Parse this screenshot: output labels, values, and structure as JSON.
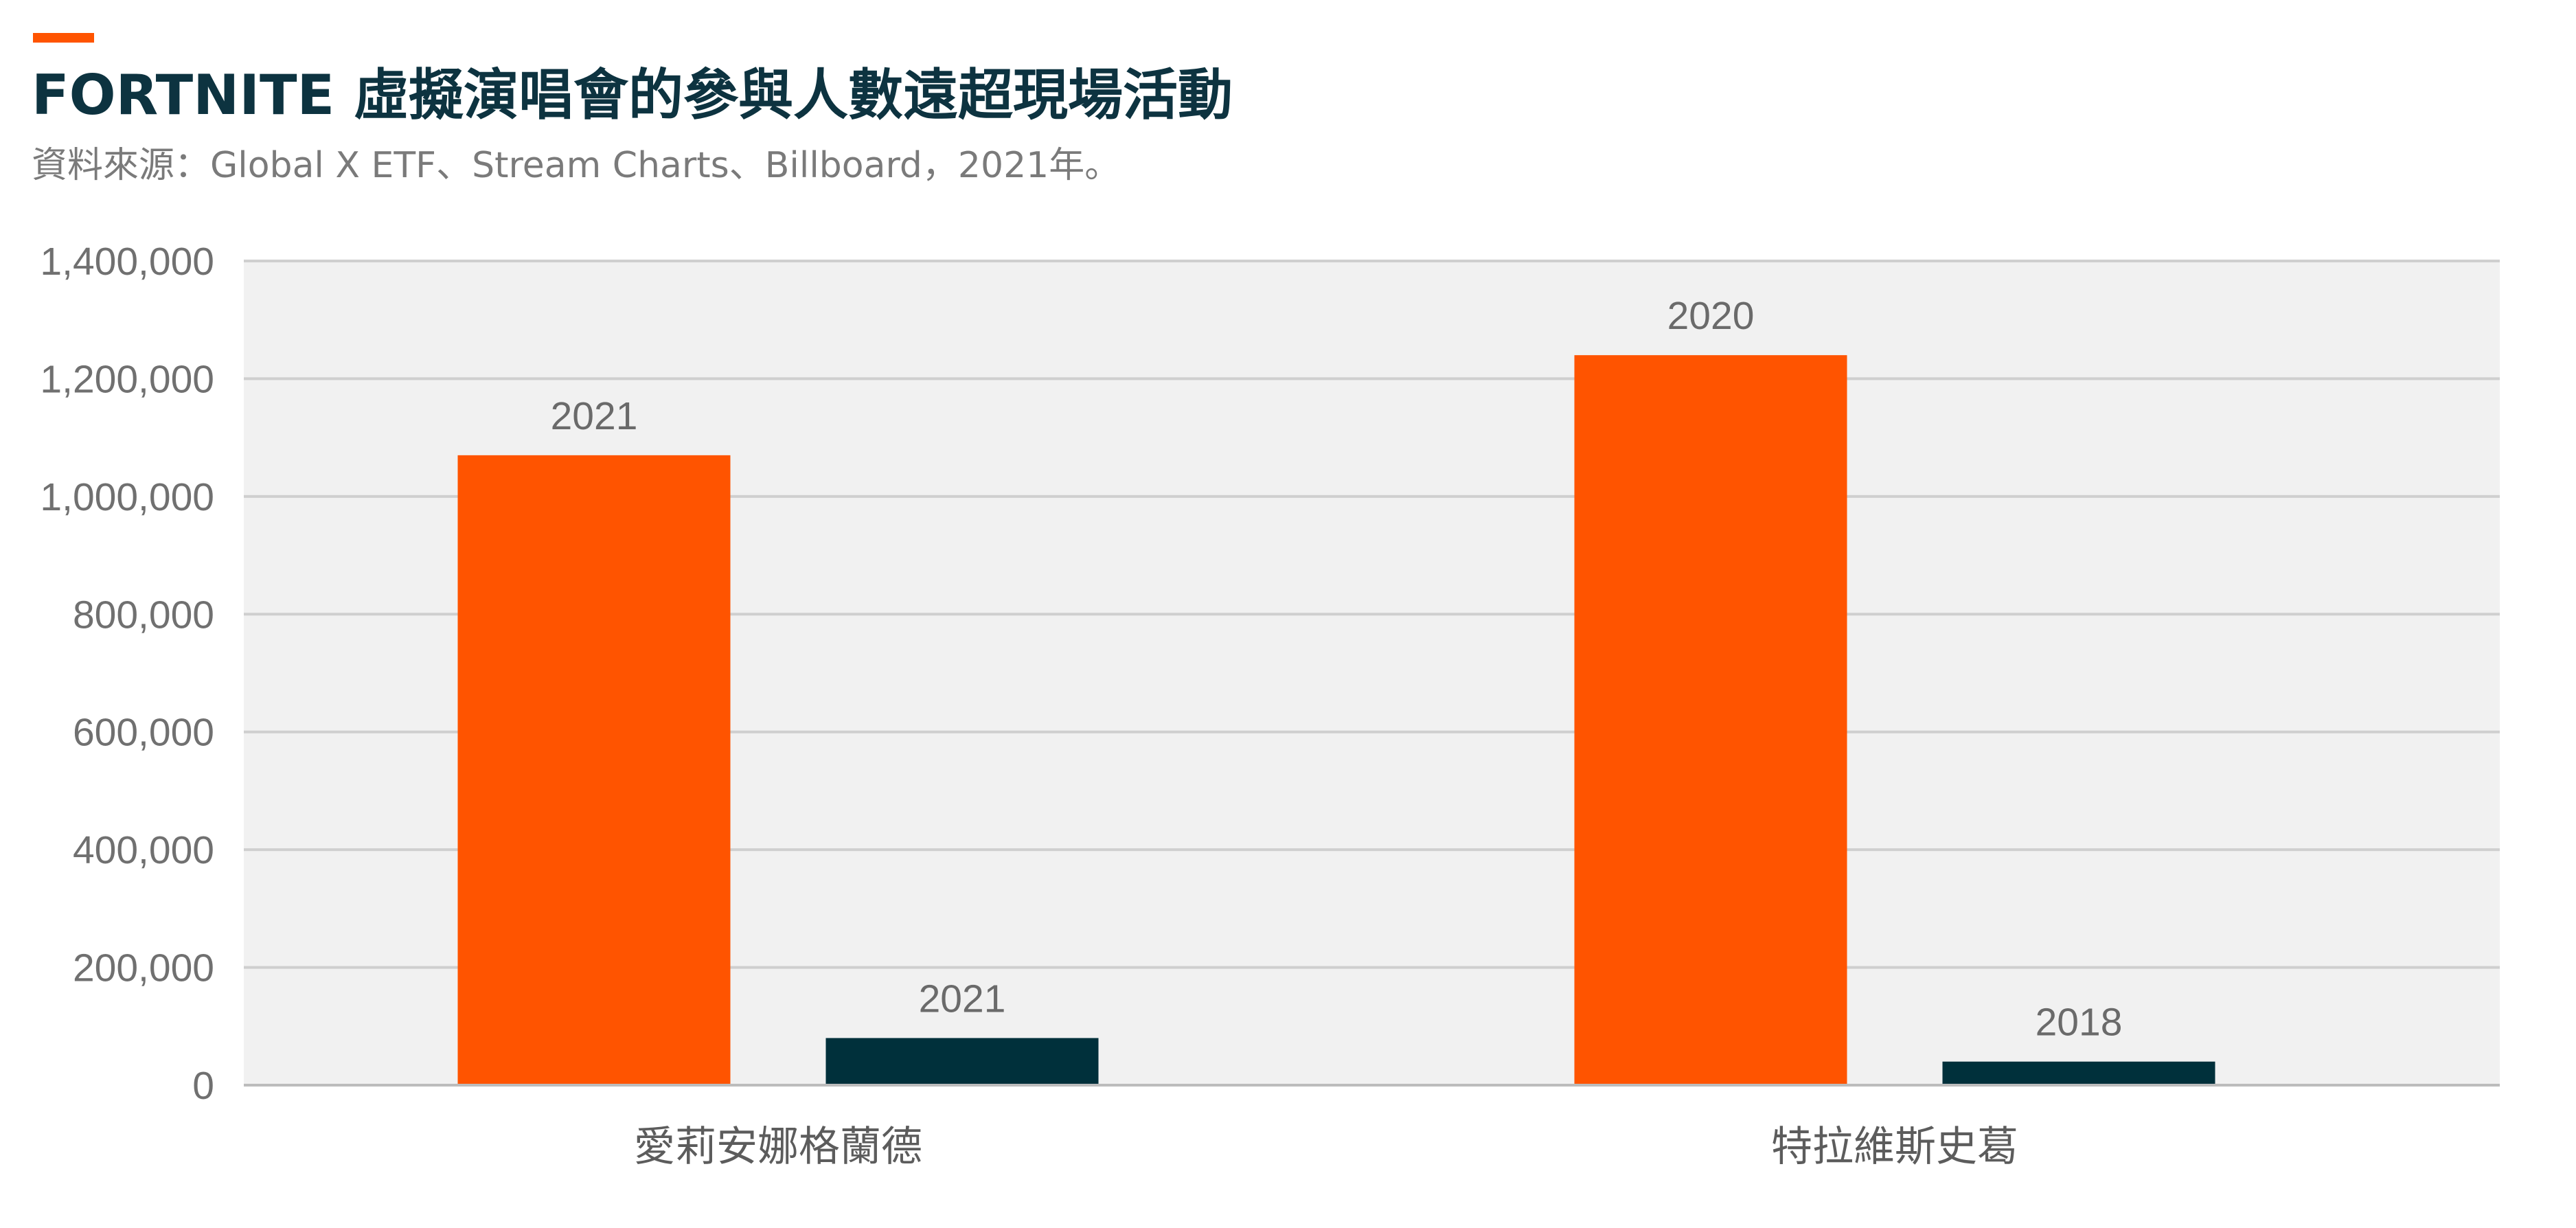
{
  "header": {
    "title": "FORTNITE 虛擬演唱會的參與人數遠超現場活動",
    "source": "資料來源：Global X ETF、Stream Charts、Billboard，2021年。"
  },
  "colors": {
    "accent": "#ff5400",
    "title": "#0d3340",
    "virtual_bar": "#ff5400",
    "live_bar": "#00303b",
    "plot_bg": "#f1f1f1",
    "grid": "#cfcfcf"
  },
  "chart_data": {
    "type": "bar",
    "title": "FORTNITE 虛擬演唱會的參與人數遠超現場活動",
    "categories": [
      "愛莉安娜格蘭德",
      "特拉維斯史葛"
    ],
    "series": [
      {
        "values": [
          1070000,
          1240000
        ],
        "labels": [
          "2021",
          "2020"
        ],
        "color": "#ff5400"
      },
      {
        "values": [
          80000,
          40000
        ],
        "labels": [
          "2021",
          "2018"
        ],
        "color": "#00303b"
      }
    ],
    "ylim": [
      0,
      1400000
    ],
    "yticks": [
      "0",
      "200,000",
      "400,000",
      "600,000",
      "800,000",
      "1,000,000",
      "1,200,000",
      "1,400,000"
    ],
    "grid": true,
    "legend": "none"
  }
}
